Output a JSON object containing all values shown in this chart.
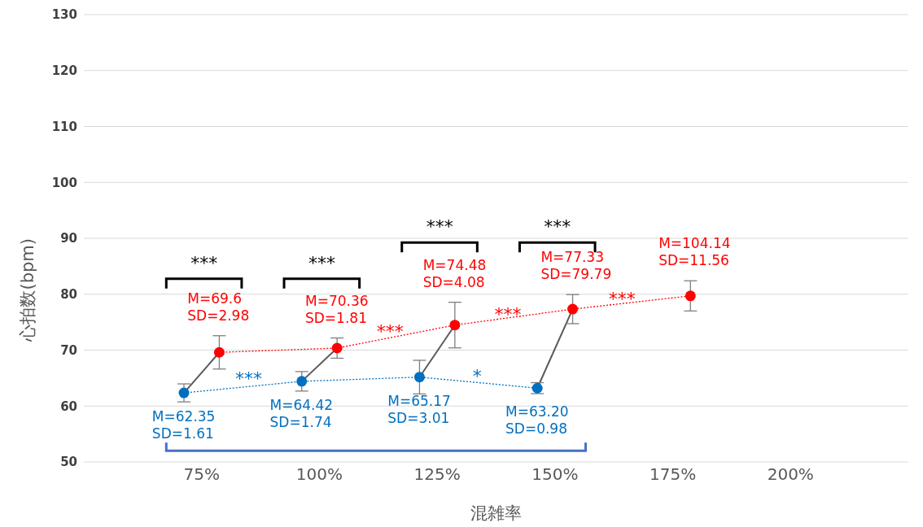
{
  "chart_data": {
    "type": "line",
    "xlabel": "混雑率",
    "ylabel": "心拍数(bpm)",
    "categories": [
      "75%",
      "100%",
      "125%",
      "150%",
      "175%",
      "200%"
    ],
    "series": [
      {
        "color": "#0070c0",
        "values": [
          62.35,
          64.42,
          65.17,
          63.2,
          null,
          null
        ],
        "errors": [
          1.61,
          1.74,
          3.01,
          0.98,
          null,
          null
        ],
        "value_labels": [
          "M=62.35\nSD=1.61",
          "M=64.42\nSD=1.74",
          "M=65.17\nSD=3.01",
          "M=63.20\nSD=0.98",
          null,
          null
        ]
      },
      {
        "color": "#ff0000",
        "values": [
          69.6,
          70.36,
          74.48,
          77.33,
          79.7,
          null
        ],
        "errors": [
          2.98,
          1.81,
          4.08,
          2.6,
          2.7,
          null
        ],
        "value_labels": [
          "M=69.6\nSD=2.98",
          "M=70.36\nSD=1.81",
          "M=74.48\nSD=4.08",
          "M=77.33\nSD=79.79",
          "M=104.14\nSD=11.56",
          null
        ]
      }
    ],
    "ylim": [
      50,
      130
    ],
    "yticks": [
      50,
      60,
      70,
      80,
      90,
      100,
      110,
      120,
      130
    ],
    "grid": "y",
    "marker": "circle",
    "line_style": "dotted",
    "annotations": [
      "***",
      "***",
      "***",
      "***",
      {
        "text": "***",
        "x": "75%",
        "y": 62.35
      },
      "*",
      "***",
      "***",
      "***"
    ]
  }
}
